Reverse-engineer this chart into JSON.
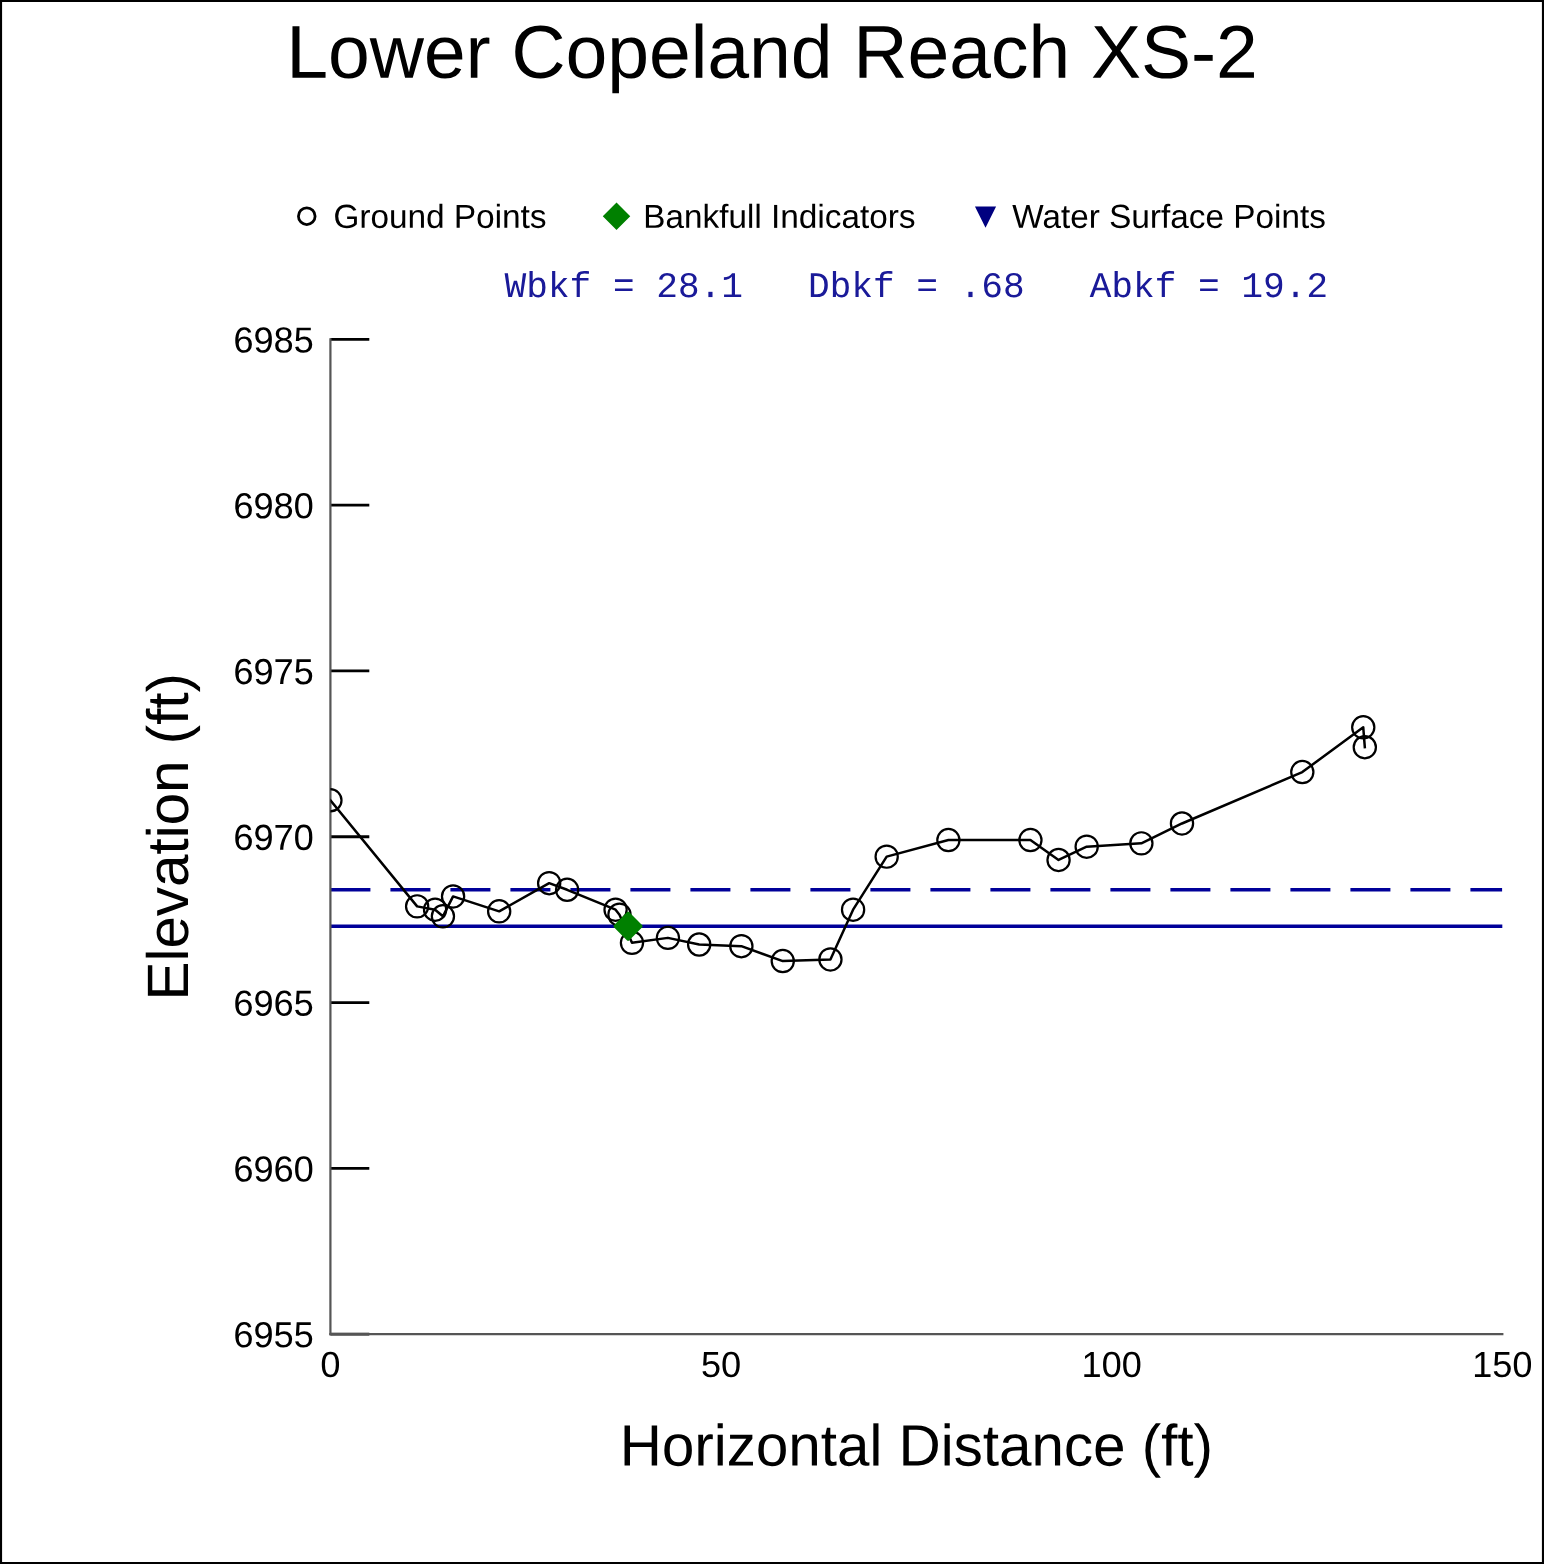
{
  "chart_data": {
    "type": "line",
    "title": "Lower Copeland Reach XS-2",
    "xlabel": "Horizontal Distance (ft)",
    "ylabel": "Elevation (ft)",
    "annotations": [
      "Wbkf = 28.1   Dbkf = .68   Abkf = 19.2"
    ],
    "xlim": [
      0,
      150
    ],
    "xticks": [
      0,
      50,
      100,
      150
    ],
    "ylim": [
      6955,
      6985
    ],
    "yticks": [
      6955,
      6960,
      6965,
      6970,
      6975,
      6980,
      6985
    ],
    "grid": false,
    "legend": "top",
    "series": [
      {
        "name": "Ground Points",
        "marker": "circle",
        "color": "#000000",
        "x": [
          0,
          11.1,
          13.4,
          14.4,
          15.7,
          21.6,
          28.0,
          30.3,
          36.5,
          37.0,
          38.6,
          43.2,
          47.2,
          52.6,
          57.9,
          64.0,
          66.9,
          71.2,
          79.1,
          89.6,
          93.2,
          96.8,
          103.8,
          109.0,
          124.4,
          132.2,
          132.4
        ],
        "values": [
          6971.1,
          6967.9,
          6967.8,
          6967.6,
          6968.2,
          6967.75,
          6968.6,
          6968.4,
          6967.8,
          6967.65,
          6966.8,
          6966.95,
          6966.75,
          6966.7,
          6966.25,
          6966.3,
          6967.8,
          6969.4,
          6969.9,
          6969.9,
          6969.3,
          6969.7,
          6969.8,
          6970.4,
          6971.95,
          6973.3,
          6972.7
        ]
      },
      {
        "name": "Bankfull Indicators",
        "type": "scatter",
        "marker": "diamond",
        "color": "#008000",
        "x": [
          38.1
        ],
        "values": [
          6967.3
        ]
      },
      {
        "name": "Water Surface Points",
        "type": "scatter",
        "marker": "triangle",
        "color": "#000080"
      }
    ],
    "ref_lines": [
      {
        "axis": "y",
        "value": 6968.4,
        "color": "#000099",
        "line_style": "dashed"
      },
      {
        "axis": "y",
        "value": 6967.3,
        "color": "#000099",
        "line_style": "solid"
      }
    ]
  }
}
